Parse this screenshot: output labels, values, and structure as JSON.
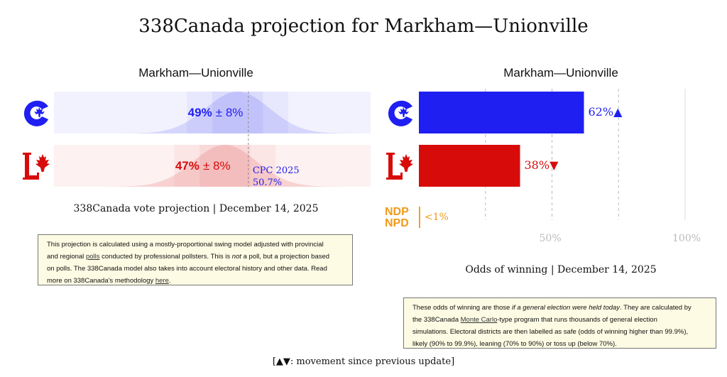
{
  "title": "338Canada projection for Markham—Unionville",
  "colors": {
    "cpc": "#1f1ff2",
    "lpc": "#d80b0b",
    "ndp": "#f29a1a",
    "note_bg": "#fdfbe3"
  },
  "notes": {
    "vote": {
      "line1": "This projection is calculated using a mostly-proportional swing model adjusted with provincial",
      "line2a": "and regional ",
      "line2_link": "polls",
      "line2b": " conducted by professional pollsters. This is ",
      "line2_em": "not",
      "line2c": " a poll, but a projection based",
      "line3": "on polls. The 338Canada model also takes into account electoral history and other data. Read",
      "line4a": "more on 338Canada's methodology ",
      "line4_link": "here",
      "line4b": "."
    },
    "odds": {
      "line1a": "These odds of winning are those ",
      "line1_em": "if a general election were held today",
      "line1b": ". They are calculated by",
      "line2a": "the 338Canada ",
      "line2_link": "Monte Carlo",
      "line2b": "-type program that runs thousands of general election",
      "line3": "simulations. Electoral districts are then labelled as safe (odds of winning higher than 99.9%),",
      "line4": "likely (90% to 99.9%), leaning (70% to 90%) or toss up (below 70%)."
    }
  },
  "footer": "[▲▼: movement since previous update]",
  "chart_data": [
    {
      "type": "bar",
      "title": "Markham—Unionville",
      "caption": "338Canada vote projection | December 14, 2025",
      "series": [
        {
          "party": "CPC",
          "value": 49,
          "margin": 8,
          "value_label": "49%",
          "margin_label": "± 8%"
        },
        {
          "party": "LPC",
          "value": 47,
          "margin": 8,
          "value_label": "47%",
          "margin_label": "± 8%"
        }
      ],
      "xlim": [
        0,
        100
      ],
      "reference": {
        "value": 50.7,
        "label_party": "CPC 2025",
        "label_value": "50.7%"
      }
    },
    {
      "type": "bar",
      "title": "Markham—Unionville",
      "caption": "Odds of winning | December 14, 2025",
      "series": [
        {
          "party": "CPC",
          "value": 62,
          "label": "62%",
          "arrow": "▲"
        },
        {
          "party": "LPC",
          "value": 38,
          "label": "38%",
          "arrow": "▼"
        },
        {
          "party": "NDP",
          "value": 0.5,
          "label": "<1%",
          "arrow": ""
        }
      ],
      "xlim": [
        0,
        100
      ],
      "gridlines": [
        25,
        50,
        75,
        100
      ],
      "tick_labels": [
        "50%",
        "100%"
      ],
      "ticks": [
        50,
        100
      ],
      "ndp_logo_text": [
        "NDP",
        "NPD"
      ]
    }
  ]
}
